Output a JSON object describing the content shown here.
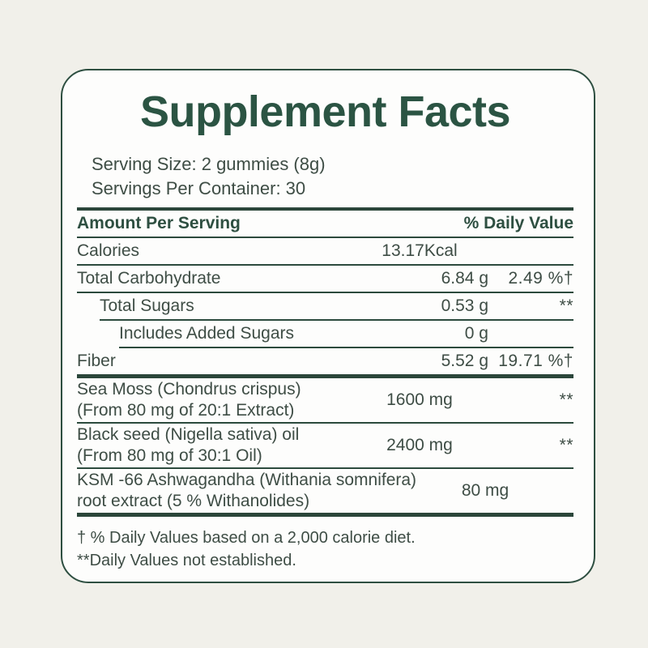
{
  "label": {
    "title": "Supplement Facts",
    "serving": {
      "size": "Serving Size: 2 gummies (8g)",
      "per_container": "Servings Per Container: 30"
    },
    "table": {
      "columns": {
        "amount_per_serving": "Amount Per Serving",
        "daily_value": "% Daily Value"
      },
      "rows": [
        {
          "name": "Calories",
          "amount": "13.17Kcal",
          "dv": ""
        },
        {
          "name": "Total Carbohydrate",
          "amount": "6.84 g",
          "dv": "2.49 %†"
        },
        {
          "name": "Total Sugars",
          "amount": "0.53 g",
          "dv": "**"
        },
        {
          "name": "Includes Added Sugars",
          "amount": "0 g",
          "dv": ""
        },
        {
          "name": "Fiber",
          "amount": "5.52 g",
          "dv": "19.71 %†"
        },
        {
          "name": "Sea Moss (Chondrus crispus)",
          "name2": "(From 80 mg of 20:1 Extract)",
          "amount": "1600 mg",
          "dv": "**"
        },
        {
          "name": "Black seed (Nigella sativa) oil",
          "name2": "(From 80 mg of 30:1 Oil)",
          "amount": "2400 mg",
          "dv": "**"
        },
        {
          "name": "KSM -66 Ashwagandha (Withania somnifera)",
          "name2": "root extract (5 % Withanolides)",
          "amount": "80 mg",
          "dv": "**"
        }
      ],
      "footnotes": [
        "† % Daily Values based on a 2,000 calorie diet.",
        "**Daily Values not established."
      ]
    },
    "colors": {
      "accent_green": "#2b5443",
      "text_green": "#3e4d45",
      "rule_green": "#2c4a3d",
      "card_background": "#fdfdfc",
      "page_background": "#f1f0ea"
    }
  }
}
